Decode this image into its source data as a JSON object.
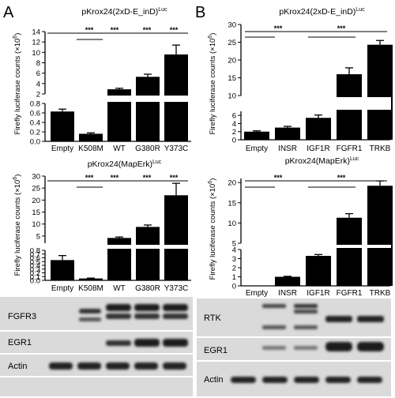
{
  "panels": [
    {
      "letter": "A"
    },
    {
      "letter": "B"
    }
  ],
  "chart_data": [
    {
      "type": "bar",
      "title": "pKrox24(2xD-E_inD)",
      "title_sup": "Luc",
      "ylabel": "Firefly luciferase counts (×10",
      "ylabel_sup": "6",
      "ylabel_end": ")",
      "axis_break": {
        "lower": [
          0,
          0.8
        ],
        "upper": [
          2,
          14
        ]
      },
      "lower_ticks": [
        "0.0",
        "0.2",
        "0.4",
        "0.6",
        "0.8"
      ],
      "upper_ticks": [
        "2",
        "4",
        "6",
        "8",
        "10",
        "12",
        "14"
      ],
      "categories": [
        "Empty",
        "K508M",
        "WT",
        "G380R",
        "Y373C"
      ],
      "values": [
        0.63,
        0.16,
        2.9,
        5.3,
        9.6
      ],
      "errors": [
        0.05,
        0.02,
        0.2,
        0.5,
        1.8
      ],
      "significance": [
        "***",
        "***",
        "***",
        "***"
      ]
    },
    {
      "type": "bar",
      "title": "pKrox24(MapErk)",
      "title_sup": "Luc",
      "ylabel": "Firefly luciferase counts (×10",
      "ylabel_sup": "6",
      "ylabel_end": ")",
      "axis_break": {
        "lower": [
          0,
          0.8
        ],
        "upper": [
          2,
          30
        ]
      },
      "lower_ticks": [
        "0.0",
        "0.1",
        "0.2",
        "0.3",
        "0.4",
        "0.5",
        "0.6",
        "0.7",
        "0.8"
      ],
      "upper_ticks": [
        "5",
        "10",
        "15",
        "20",
        "25",
        "30"
      ],
      "categories": [
        "Empty",
        "K508M",
        "WT",
        "G380R",
        "Y373C"
      ],
      "values": [
        0.54,
        0.05,
        4.2,
        8.8,
        22
      ],
      "errors": [
        0.12,
        0.01,
        0.4,
        0.8,
        5
      ],
      "significance": [
        "***",
        "***",
        "***",
        "***"
      ]
    },
    {
      "type": "bar",
      "title": "pKrox24(2xD-E_inD)",
      "title_sup": "Luc",
      "ylabel": "Firefly luciferase counts (×10",
      "ylabel_sup": "6",
      "ylabel_end": ")",
      "axis_break": {
        "lower": [
          0,
          7
        ],
        "upper": [
          10,
          30
        ]
      },
      "lower_ticks": [
        "0",
        "2",
        "4",
        "6"
      ],
      "upper_ticks": [
        "10",
        "15",
        "20",
        "25",
        "30"
      ],
      "categories": [
        "Empty",
        "INSR",
        "IGF1R",
        "FGFR1",
        "TRKB"
      ],
      "values": [
        2.0,
        3.0,
        5.4,
        16,
        24.3
      ],
      "errors": [
        0.2,
        0.3,
        0.7,
        1.8,
        1.2
      ],
      "significance": [
        "***",
        "***"
      ]
    },
    {
      "type": "bar",
      "title": "pKrox24(MapErk)",
      "title_sup": "Luc",
      "ylabel": "Firefly luciferase counts (×10",
      "ylabel_sup": "6",
      "ylabel_end": ")",
      "axis_break": {
        "lower": [
          0,
          4
        ],
        "upper": [
          5,
          21
        ]
      },
      "lower_ticks": [
        "0",
        "1",
        "2",
        "3",
        "4"
      ],
      "upper_ticks": [
        "5",
        "10",
        "15",
        "20"
      ],
      "categories": [
        "Empty",
        "INSR",
        "IGF1R",
        "FGFR1",
        "TRKB"
      ],
      "values": [
        0.02,
        1.0,
        3.3,
        11.3,
        19.2
      ],
      "errors": [
        0,
        0.05,
        0.15,
        1.0,
        1.2
      ],
      "significance": [
        "***",
        "***"
      ]
    }
  ],
  "blots": [
    {
      "labels": [
        "FGFR3",
        "EGR1",
        "Actin"
      ]
    },
    {
      "labels": [
        "RTK",
        "EGR1",
        "Actin"
      ]
    }
  ]
}
